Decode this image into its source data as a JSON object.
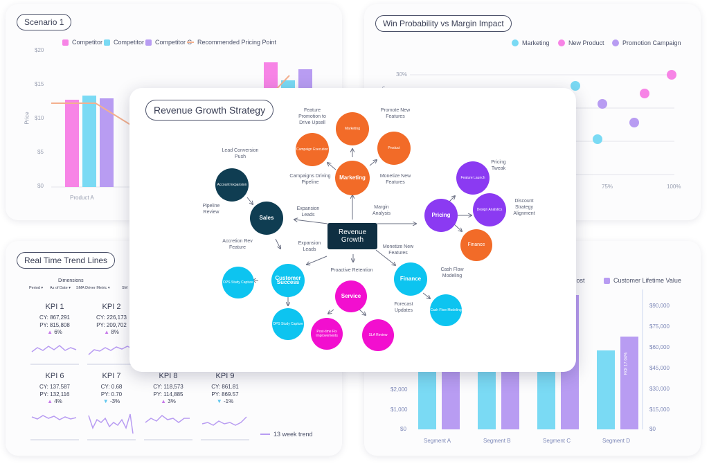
{
  "colors": {
    "competitor_a": "#f784e6",
    "competitor_b": "#7adaf4",
    "competitor_c": "#b89cf2",
    "rec_line": "#f4b08e",
    "marketing": "#7adaf4",
    "new_product": "#f784e6",
    "promotion": "#b89cf2",
    "orange": "#f26b28",
    "navy": "#0f3d52",
    "purple": "#8b3af2",
    "cyan": "#0dc4f0",
    "magenta": "#f20fcf",
    "center": "#0f2f42",
    "lifetime": "#b89cf2",
    "cost": "#7adaf4"
  },
  "scenario": {
    "title": "Scenario 1",
    "legend": [
      "Competitor A",
      "Competitor B",
      "Competitor C",
      "Recommended Pricing Point"
    ],
    "y_ticks": [
      "$20",
      "$15",
      "$10",
      "$5",
      "$0"
    ],
    "y_label": "Price",
    "x_label": "Product A"
  },
  "winprob": {
    "title": "Win Probability vs Margin Impact",
    "legend": [
      "Marketing",
      "New Product",
      "Promotion Campaign"
    ],
    "y_ticks": [
      "30%"
    ],
    "x_ticks": [
      "75%",
      "100%"
    ],
    "y_label_partial": "c"
  },
  "trend": {
    "title": "Real Time Trend Lines",
    "dimensions": "Dimensions",
    "filters": [
      "Period",
      "As of Date",
      "SMA Driver Metric",
      "SM"
    ],
    "kpis": [
      {
        "name": "KPI 1",
        "cy": "CY: 867,291",
        "py": "PY: 815,808",
        "delta": "6%",
        "dir": "up"
      },
      {
        "name": "KPI 2",
        "cy": "CY: 226,173",
        "py": "PY: 209,702",
        "delta": "8%",
        "dir": "up"
      },
      {
        "name": "KPI 6",
        "cy": "CY: 137,587",
        "py": "PY: 132,116",
        "delta": "4%",
        "dir": "up"
      },
      {
        "name": "KPI 7",
        "cy": "CY: 0.68",
        "py": "PY: 0.70",
        "delta": "-3%",
        "dir": "down"
      },
      {
        "name": "KPI 8",
        "cy": "CY: 118,573",
        "py": "PY: 114,885",
        "delta": "3%",
        "dir": "up"
      },
      {
        "name": "KPI 9",
        "cy": "CY: 861.81",
        "py": "PY: 869.57",
        "delta": "-1%",
        "dir": "down"
      }
    ],
    "legend": "13 week trend"
  },
  "segment": {
    "legend_cost": "Cost",
    "legend_lifetime": "Customer Lifetime Value",
    "left_ticks": [
      "$2,000",
      "$1,000",
      "$0"
    ],
    "right_ticks": [
      "$90,000",
      "$75,000",
      "$60,000",
      "$45,000",
      "$30,000",
      "$15,000",
      "$0"
    ],
    "categories": [
      "Segment A",
      "Segment B",
      "Segment C",
      "Segment D"
    ],
    "bar_label": "ROI 17.04%"
  },
  "mindmap": {
    "title": "Revenue Growth Strategy",
    "center": "Revenue Growth",
    "nodes": {
      "marketing": "Marketing",
      "campaign_exec": "Campaign Execution",
      "marketing_small": "Marketing",
      "product": "Product",
      "sales": "Sales",
      "account_exp": "Account Expansion",
      "pricing": "Pricing",
      "feature_launch": "Feature Launch",
      "design_analytics": "Design Analytics",
      "finance_pricing": "Finance",
      "customer_success": "Customer Success",
      "ops_capture1": "OPS Study Capture",
      "ops_capture2": "OPS Study Capture",
      "service": "Service",
      "post_time": "Post-time Fix Improvements",
      "sla": "SLA Review",
      "finance": "Finance",
      "cash_flow": "Cash Flow Modeling"
    },
    "labels": {
      "feature_promo": "Feature Promotion to Drive Upsell",
      "promote_new": "Promote New Features",
      "lead_conv": "Lead Conversion Push",
      "campaigns_pipeline": "Campaigns Driving Pipeline",
      "monetize_new_top": "Monetize New Features",
      "pricing_tweak": "Pricing Tweak",
      "pipeline_review": "Pipeline Review",
      "expansion_leads_top": "Expansion Leads",
      "margin_analysis": "Margin Analysis",
      "discount": "Discount Strategy Alignment",
      "accretion": "Accretion Rev Feature",
      "expansion_leads_bottom": "Expansion Leads",
      "monetize_new_bottom": "Monetize New Features",
      "proactive": "Proactive Retention",
      "cash_flow_modeling": "Cash Flow Modeling",
      "forecast": "Forecast Updates"
    }
  }
}
